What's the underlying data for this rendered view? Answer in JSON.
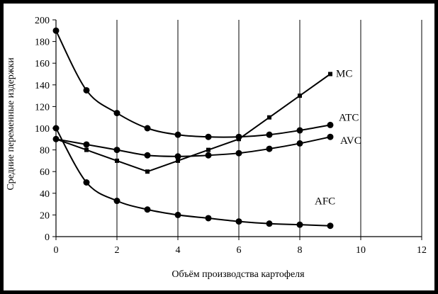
{
  "chart_data": {
    "type": "line",
    "xlabel": "Объём производства картофеля",
    "ylabel": "Средние переменные издержки",
    "xlim": [
      0,
      12
    ],
    "ylim": [
      0,
      200
    ],
    "x_ticks": [
      "0",
      "2",
      "4",
      "6",
      "8",
      "10",
      "12"
    ],
    "y_ticks": [
      "0",
      "20",
      "40",
      "60",
      "80",
      "100",
      "120",
      "140",
      "160",
      "180",
      "200"
    ],
    "grid": "vertical",
    "legend": "labels at line ends",
    "series": [
      {
        "name": "MC",
        "marker": "square",
        "x": [
          0,
          1,
          2,
          3,
          4,
          5,
          6,
          7,
          8,
          9
        ],
        "y": [
          90,
          80,
          70,
          60,
          70,
          80,
          90,
          110,
          130,
          150
        ]
      },
      {
        "name": "ATC",
        "marker": "circle",
        "x": [
          0,
          1,
          2,
          3,
          4,
          5,
          6,
          7,
          8,
          9
        ],
        "y": [
          190,
          135,
          114,
          100,
          94,
          92,
          92,
          94,
          98,
          103
        ]
      },
      {
        "name": "AVC",
        "marker": "circle",
        "x": [
          0,
          1,
          2,
          3,
          4,
          5,
          6,
          7,
          8,
          9
        ],
        "y": [
          90,
          85,
          80,
          75,
          74,
          75,
          77,
          81,
          86,
          92
        ]
      },
      {
        "name": "AFC",
        "marker": "circle",
        "x": [
          0,
          1,
          2,
          3,
          4,
          5,
          6,
          7,
          8,
          9
        ],
        "y": [
          100,
          50,
          33,
          25,
          20,
          17,
          14,
          12,
          11,
          10
        ]
      }
    ]
  }
}
